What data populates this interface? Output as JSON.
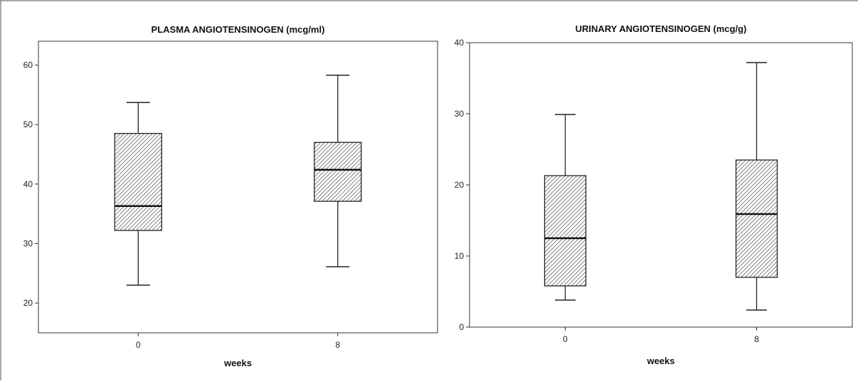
{
  "chart_data": [
    {
      "type": "boxplot",
      "title": "PLASMA ANGIOTENSINOGEN (mcg/ml)",
      "xlabel": "weeks",
      "ylabel": "",
      "categories": [
        "0",
        "8"
      ],
      "ylim": [
        15,
        64
      ],
      "yticks": [
        "20",
        "30",
        "40",
        "50",
        "60"
      ],
      "boxes": [
        {
          "category": "0",
          "whisker_low": 23,
          "q1": 32.2,
          "median": 36.3,
          "q3": 48.5,
          "whisker_high": 53.7
        },
        {
          "category": "8",
          "whisker_low": 26.1,
          "q1": 37.1,
          "median": 42.4,
          "q3": 47.0,
          "whisker_high": 58.3
        }
      ]
    },
    {
      "type": "boxplot",
      "title": "URINARY ANGIOTENSINOGEN (mcg/g)",
      "xlabel": "weeks",
      "ylabel": "",
      "categories": [
        "0",
        "8"
      ],
      "ylim": [
        0,
        40
      ],
      "yticks": [
        "0",
        "10",
        "20",
        "30",
        "40"
      ],
      "boxes": [
        {
          "category": "0",
          "whisker_low": 3.8,
          "q1": 5.8,
          "median": 12.5,
          "q3": 21.3,
          "whisker_high": 29.9
        },
        {
          "category": "8",
          "whisker_low": 2.4,
          "q1": 7.0,
          "median": 15.9,
          "q3": 23.5,
          "whisker_high": 37.2
        }
      ]
    }
  ]
}
